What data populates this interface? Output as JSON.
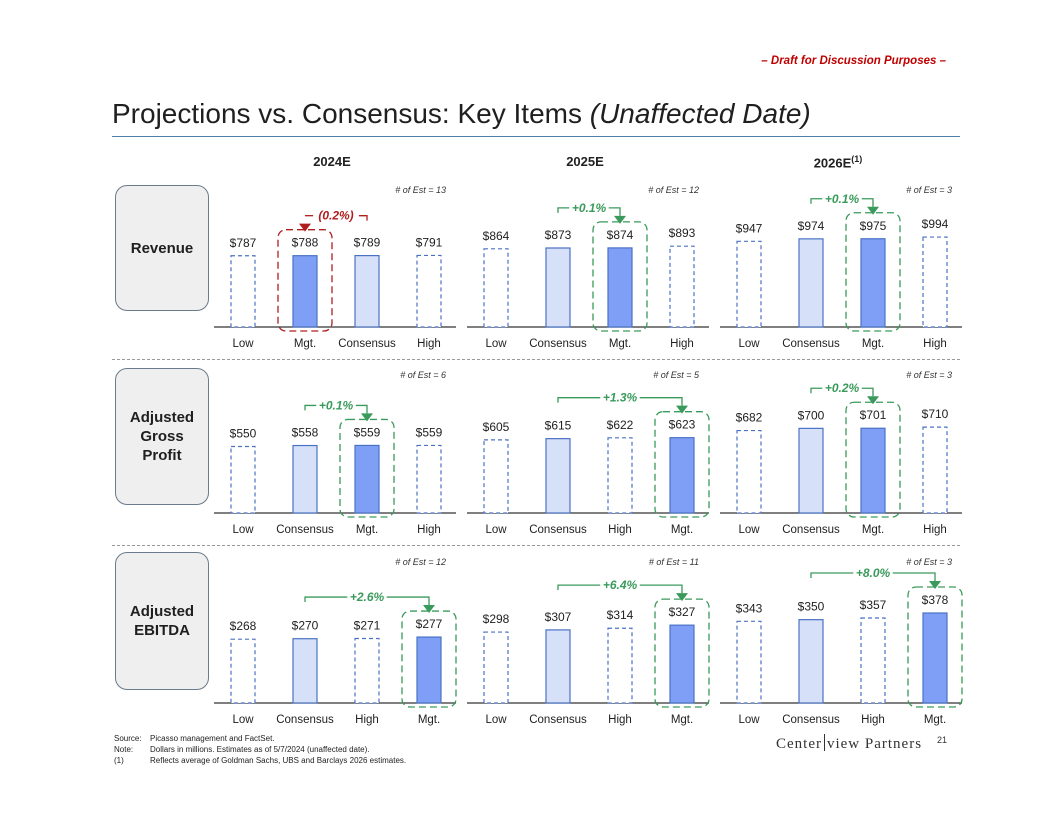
{
  "header": {
    "draft": "– Draft for Discussion Purposes –",
    "title_main": "Projections vs. Consensus: Key Items ",
    "title_italic": "(Unaffected Date)"
  },
  "years": [
    {
      "label": "2024E",
      "sup": ""
    },
    {
      "label": "2025E",
      "sup": ""
    },
    {
      "label": "2026E",
      "sup": "(1)"
    }
  ],
  "rows": [
    {
      "label_lines": [
        "Revenue"
      ]
    },
    {
      "label_lines": [
        "Adjusted",
        "Gross",
        "Profit"
      ]
    },
    {
      "label_lines": [
        "Adjusted",
        "EBITDA"
      ]
    }
  ],
  "colors": {
    "mgt_fill": "#7e9ff5",
    "consensus_fill": "#d6e0f8",
    "bar_stroke": "#4a72c4",
    "positive": "#3a9a5b",
    "negative": "#b01d1d",
    "axis": "#333333"
  },
  "chart_data": [
    {
      "type": "bar",
      "row": "Revenue",
      "year": "2024E",
      "title": "Revenue 2024E",
      "est_count": "# of Est = 13",
      "categories": [
        "Low",
        "Mgt.",
        "Consensus",
        "High"
      ],
      "values": [
        787,
        788,
        789,
        791
      ],
      "labels": [
        "$787",
        "$788",
        "$789",
        "$791"
      ],
      "mgt_index": 1,
      "consensus_index": 2,
      "diff_label": "(0.2%)",
      "diff_direction": "negative",
      "ylim": [
        0,
        1000
      ]
    },
    {
      "type": "bar",
      "row": "Revenue",
      "year": "2025E",
      "title": "Revenue 2025E",
      "est_count": "# of Est = 12",
      "categories": [
        "Low",
        "Consensus",
        "Mgt.",
        "High"
      ],
      "values": [
        864,
        873,
        874,
        893
      ],
      "labels": [
        "$864",
        "$873",
        "$874",
        "$893"
      ],
      "mgt_index": 2,
      "consensus_index": 1,
      "diff_label": "+0.1%",
      "diff_direction": "positive",
      "ylim": [
        0,
        1000
      ]
    },
    {
      "type": "bar",
      "row": "Revenue",
      "year": "2026E",
      "title": "Revenue 2026E",
      "est_count": "# of Est = 3",
      "categories": [
        "Low",
        "Consensus",
        "Mgt.",
        "High"
      ],
      "values": [
        947,
        974,
        975,
        994
      ],
      "labels": [
        "$947",
        "$974",
        "$975",
        "$994"
      ],
      "mgt_index": 2,
      "consensus_index": 1,
      "diff_label": "+0.1%",
      "diff_direction": "positive",
      "ylim": [
        0,
        1000
      ]
    },
    {
      "type": "bar",
      "row": "Adjusted Gross Profit",
      "year": "2024E",
      "title": "Adjusted Gross Profit 2024E",
      "est_count": "# of Est = 6",
      "categories": [
        "Low",
        "Consensus",
        "Mgt.",
        "High"
      ],
      "values": [
        550,
        558,
        559,
        559
      ],
      "labels": [
        "$550",
        "$558",
        "$559",
        "$559"
      ],
      "mgt_index": 2,
      "consensus_index": 1,
      "diff_label": "+0.1%",
      "diff_direction": "positive",
      "ylim": [
        0,
        750
      ]
    },
    {
      "type": "bar",
      "row": "Adjusted Gross Profit",
      "year": "2025E",
      "title": "Adjusted Gross Profit 2025E",
      "est_count": "# of Est = 5",
      "categories": [
        "Low",
        "Consensus",
        "High",
        "Mgt."
      ],
      "values": [
        605,
        615,
        622,
        623
      ],
      "labels": [
        "$605",
        "$615",
        "$622",
        "$623"
      ],
      "mgt_index": 3,
      "consensus_index": 1,
      "diff_label": "+1.3%",
      "diff_direction": "positive",
      "ylim": [
        0,
        750
      ]
    },
    {
      "type": "bar",
      "row": "Adjusted Gross Profit",
      "year": "2026E",
      "title": "Adjusted Gross Profit 2026E",
      "est_count": "# of Est = 3",
      "categories": [
        "Low",
        "Consensus",
        "Mgt.",
        "High"
      ],
      "values": [
        682,
        700,
        701,
        710
      ],
      "labels": [
        "$682",
        "$700",
        "$701",
        "$710"
      ],
      "mgt_index": 2,
      "consensus_index": 1,
      "diff_label": "+0.2%",
      "diff_direction": "positive",
      "ylim": [
        0,
        750
      ]
    },
    {
      "type": "bar",
      "row": "Adjusted EBITDA",
      "year": "2024E",
      "title": "Adjusted EBITDA 2024E",
      "est_count": "# of Est = 12",
      "categories": [
        "Low",
        "Consensus",
        "High",
        "Mgt."
      ],
      "values": [
        268,
        270,
        271,
        277
      ],
      "labels": [
        "$268",
        "$270",
        "$271",
        "$277"
      ],
      "mgt_index": 3,
      "consensus_index": 1,
      "diff_label": "+2.6%",
      "diff_direction": "positive",
      "ylim": [
        0,
        400
      ]
    },
    {
      "type": "bar",
      "row": "Adjusted EBITDA",
      "year": "2025E",
      "title": "Adjusted EBITDA 2025E",
      "est_count": "# of Est = 11",
      "categories": [
        "Low",
        "Consensus",
        "High",
        "Mgt."
      ],
      "values": [
        298,
        307,
        314,
        327
      ],
      "labels": [
        "$298",
        "$307",
        "$314",
        "$327"
      ],
      "mgt_index": 3,
      "consensus_index": 1,
      "diff_label": "+6.4%",
      "diff_direction": "positive",
      "ylim": [
        0,
        400
      ]
    },
    {
      "type": "bar",
      "row": "Adjusted EBITDA",
      "year": "2026E",
      "title": "Adjusted EBITDA 2026E",
      "est_count": "# of Est = 3",
      "categories": [
        "Low",
        "Consensus",
        "High",
        "Mgt."
      ],
      "values": [
        343,
        350,
        357,
        378
      ],
      "labels": [
        "$343",
        "$350",
        "$357",
        "$378"
      ],
      "mgt_index": 3,
      "consensus_index": 1,
      "diff_label": "+8.0%",
      "diff_direction": "positive",
      "ylim": [
        0,
        400
      ]
    }
  ],
  "footnotes": [
    {
      "key": "Source:",
      "text": "Picasso management and FactSet."
    },
    {
      "key": "Note:",
      "text": "Dollars in millions. Estimates as of 5/7/2024 (unaffected date)."
    },
    {
      "key": "(1)",
      "text": "Reflects average of Goldman Sachs, UBS and Barclays 2026 estimates."
    }
  ],
  "logo": {
    "left": "Center",
    "right": "view Partners"
  },
  "page_number": "21"
}
